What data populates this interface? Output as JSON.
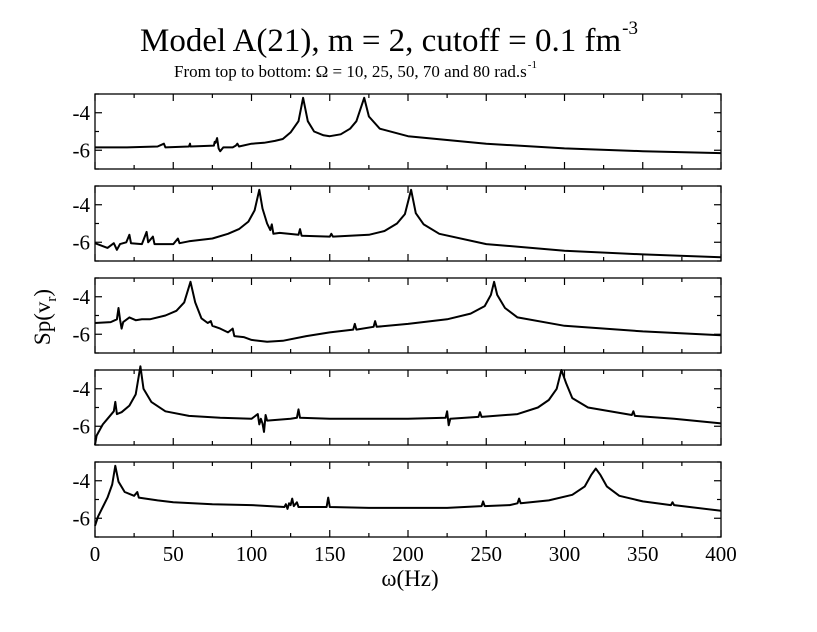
{
  "chart_data": {
    "type": "line",
    "title": "Model A(21), m = 2, cutoff = 0.1 fm",
    "title_sup": "-3",
    "subtitle": "From top to bottom: Ω = 10, 25, 50, 70 and 80 rad.s",
    "subtitle_sup": "-1",
    "xlabel": "ω(Hz)",
    "ylabel_main": "Sp(v",
    "ylabel_sub": "r",
    "ylabel_close": ")",
    "xlim": [
      0,
      400
    ],
    "ylim": [
      -7,
      -3
    ],
    "x_ticks": [
      0,
      50,
      100,
      150,
      200,
      250,
      300,
      350,
      400
    ],
    "y_ticks": [
      -4,
      -6
    ],
    "panels": [
      {
        "name": "Ω = 10 rad.s-1",
        "peaks": [
          [
            133,
            -3.2
          ],
          [
            172,
            -3.2
          ]
        ],
        "points": [
          [
            0,
            -5.85
          ],
          [
            20,
            -5.85
          ],
          [
            40,
            -5.8
          ],
          [
            44,
            -5.65
          ],
          [
            45,
            -5.85
          ],
          [
            60,
            -5.8
          ],
          [
            60.7,
            -5.65
          ],
          [
            61,
            -5.8
          ],
          [
            76,
            -5.75
          ],
          [
            76.5,
            -5.55
          ],
          [
            77,
            -5.6
          ],
          [
            78,
            -5.35
          ],
          [
            79,
            -5.9
          ],
          [
            80,
            -6.05
          ],
          [
            82,
            -5.85
          ],
          [
            88,
            -5.85
          ],
          [
            90,
            -5.75
          ],
          [
            91,
            -5.65
          ],
          [
            92,
            -5.8
          ],
          [
            100,
            -5.65
          ],
          [
            108,
            -5.6
          ],
          [
            115,
            -5.5
          ],
          [
            120,
            -5.4
          ],
          [
            125,
            -5.05
          ],
          [
            130,
            -4.45
          ],
          [
            133,
            -3.2
          ],
          [
            136,
            -4.45
          ],
          [
            140,
            -5.0
          ],
          [
            146,
            -5.2
          ],
          [
            150,
            -5.25
          ],
          [
            157,
            -5.15
          ],
          [
            163,
            -4.85
          ],
          [
            167,
            -4.45
          ],
          [
            172,
            -3.2
          ],
          [
            175,
            -4.2
          ],
          [
            182,
            -4.85
          ],
          [
            200,
            -5.25
          ],
          [
            250,
            -5.65
          ],
          [
            300,
            -5.9
          ],
          [
            350,
            -6.05
          ],
          [
            400,
            -6.15
          ]
        ]
      },
      {
        "name": "Ω = 25 rad.s-1",
        "peaks": [
          [
            105,
            -3.2
          ],
          [
            202,
            -3.2
          ]
        ],
        "points": [
          [
            0,
            -6.05
          ],
          [
            8,
            -6.3
          ],
          [
            12,
            -6.05
          ],
          [
            14,
            -6.4
          ],
          [
            16,
            -6.1
          ],
          [
            20,
            -6.0
          ],
          [
            22,
            -5.6
          ],
          [
            23,
            -6.05
          ],
          [
            30,
            -6.1
          ],
          [
            33,
            -5.45
          ],
          [
            34,
            -6.0
          ],
          [
            37,
            -5.7
          ],
          [
            38,
            -6.1
          ],
          [
            50,
            -6.1
          ],
          [
            53,
            -5.8
          ],
          [
            54,
            -6.05
          ],
          [
            60,
            -5.95
          ],
          [
            75,
            -5.8
          ],
          [
            85,
            -5.55
          ],
          [
            92,
            -5.3
          ],
          [
            98,
            -4.9
          ],
          [
            102,
            -4.3
          ],
          [
            105,
            -3.2
          ],
          [
            107,
            -4.2
          ],
          [
            110,
            -5.0
          ],
          [
            112,
            -5.35
          ],
          [
            113,
            -5.05
          ],
          [
            114,
            -5.55
          ],
          [
            118,
            -5.5
          ],
          [
            130,
            -5.6
          ],
          [
            131,
            -5.3
          ],
          [
            132,
            -5.65
          ],
          [
            150,
            -5.7
          ],
          [
            151,
            -5.55
          ],
          [
            152,
            -5.7
          ],
          [
            175,
            -5.6
          ],
          [
            185,
            -5.4
          ],
          [
            193,
            -5.0
          ],
          [
            198,
            -4.5
          ],
          [
            202,
            -3.2
          ],
          [
            205,
            -4.45
          ],
          [
            210,
            -5.05
          ],
          [
            220,
            -5.55
          ],
          [
            250,
            -6.1
          ],
          [
            300,
            -6.45
          ],
          [
            350,
            -6.65
          ],
          [
            400,
            -6.8
          ]
        ]
      },
      {
        "name": "Ω = 50 rad.s-1",
        "peaks": [
          [
            61,
            -3.2
          ],
          [
            255,
            -3.2
          ]
        ],
        "points": [
          [
            0,
            -5.4
          ],
          [
            10,
            -5.35
          ],
          [
            14,
            -5.2
          ],
          [
            15,
            -4.6
          ],
          [
            16,
            -5.2
          ],
          [
            17,
            -5.7
          ],
          [
            18,
            -5.35
          ],
          [
            22,
            -5.1
          ],
          [
            26,
            -5.25
          ],
          [
            30,
            -5.2
          ],
          [
            35,
            -5.2
          ],
          [
            45,
            -5.0
          ],
          [
            52,
            -4.75
          ],
          [
            57,
            -4.3
          ],
          [
            61,
            -3.2
          ],
          [
            64,
            -4.3
          ],
          [
            68,
            -5.15
          ],
          [
            72,
            -5.4
          ],
          [
            74,
            -5.3
          ],
          [
            75,
            -5.55
          ],
          [
            80,
            -5.7
          ],
          [
            85,
            -5.9
          ],
          [
            88,
            -5.7
          ],
          [
            89,
            -6.1
          ],
          [
            95,
            -6.15
          ],
          [
            100,
            -6.3
          ],
          [
            110,
            -6.4
          ],
          [
            120,
            -6.35
          ],
          [
            135,
            -6.1
          ],
          [
            150,
            -5.9
          ],
          [
            165,
            -5.75
          ],
          [
            166,
            -5.45
          ],
          [
            167,
            -5.75
          ],
          [
            178,
            -5.6
          ],
          [
            179,
            -5.3
          ],
          [
            180,
            -5.6
          ],
          [
            200,
            -5.45
          ],
          [
            225,
            -5.2
          ],
          [
            240,
            -4.9
          ],
          [
            249,
            -4.5
          ],
          [
            253,
            -3.9
          ],
          [
            255,
            -3.2
          ],
          [
            257,
            -3.9
          ],
          [
            262,
            -4.6
          ],
          [
            270,
            -5.1
          ],
          [
            300,
            -5.55
          ],
          [
            350,
            -5.85
          ],
          [
            400,
            -6.05
          ]
        ]
      },
      {
        "name": "Ω = 70 rad.s-1",
        "peaks": [
          [
            29,
            -2.8
          ],
          [
            298,
            -3.0
          ]
        ],
        "points": [
          [
            0,
            -7.0
          ],
          [
            1,
            -6.5
          ],
          [
            3,
            -6.2
          ],
          [
            5,
            -5.9
          ],
          [
            8,
            -5.6
          ],
          [
            12,
            -5.2
          ],
          [
            13,
            -4.7
          ],
          [
            14,
            -5.35
          ],
          [
            17,
            -5.25
          ],
          [
            22,
            -4.9
          ],
          [
            26,
            -4.3
          ],
          [
            29,
            -2.8
          ],
          [
            31,
            -4.0
          ],
          [
            36,
            -4.7
          ],
          [
            45,
            -5.2
          ],
          [
            60,
            -5.45
          ],
          [
            80,
            -5.55
          ],
          [
            100,
            -5.6
          ],
          [
            104,
            -5.35
          ],
          [
            105,
            -5.9
          ],
          [
            106,
            -5.6
          ],
          [
            107,
            -5.85
          ],
          [
            108,
            -6.3
          ],
          [
            109,
            -5.4
          ],
          [
            110,
            -5.7
          ],
          [
            125,
            -5.6
          ],
          [
            129,
            -5.55
          ],
          [
            130,
            -5.1
          ],
          [
            131,
            -5.55
          ],
          [
            150,
            -5.6
          ],
          [
            175,
            -5.6
          ],
          [
            200,
            -5.6
          ],
          [
            224,
            -5.55
          ],
          [
            225,
            -5.2
          ],
          [
            226,
            -5.95
          ],
          [
            227,
            -5.6
          ],
          [
            245,
            -5.5
          ],
          [
            246,
            -5.25
          ],
          [
            247,
            -5.5
          ],
          [
            270,
            -5.35
          ],
          [
            283,
            -5.0
          ],
          [
            290,
            -4.6
          ],
          [
            295,
            -4.0
          ],
          [
            298,
            -3.0
          ],
          [
            301,
            -3.7
          ],
          [
            305,
            -4.5
          ],
          [
            315,
            -5.0
          ],
          [
            343,
            -5.4
          ],
          [
            344,
            -5.2
          ],
          [
            345,
            -5.45
          ],
          [
            370,
            -5.6
          ],
          [
            400,
            -5.85
          ]
        ]
      },
      {
        "name": "Ω = 80 rad.s-1",
        "peaks": [
          [
            13,
            -3.2
          ],
          [
            320,
            -3.35
          ]
        ],
        "points": [
          [
            0,
            -6.4
          ],
          [
            2,
            -5.9
          ],
          [
            5,
            -5.4
          ],
          [
            8,
            -4.9
          ],
          [
            11,
            -4.2
          ],
          [
            13,
            -3.2
          ],
          [
            15,
            -4.05
          ],
          [
            19,
            -4.6
          ],
          [
            25,
            -4.8
          ],
          [
            27,
            -4.6
          ],
          [
            28,
            -4.9
          ],
          [
            40,
            -5.05
          ],
          [
            50,
            -5.15
          ],
          [
            75,
            -5.25
          ],
          [
            100,
            -5.3
          ],
          [
            121,
            -5.4
          ],
          [
            122,
            -5.25
          ],
          [
            123,
            -5.5
          ],
          [
            124,
            -5.2
          ],
          [
            125,
            -5.3
          ],
          [
            126,
            -4.95
          ],
          [
            127,
            -5.35
          ],
          [
            129,
            -5.15
          ],
          [
            130,
            -5.4
          ],
          [
            148,
            -5.4
          ],
          [
            149,
            -4.9
          ],
          [
            150,
            -5.4
          ],
          [
            175,
            -5.45
          ],
          [
            200,
            -5.45
          ],
          [
            225,
            -5.45
          ],
          [
            247,
            -5.35
          ],
          [
            248,
            -5.1
          ],
          [
            249,
            -5.35
          ],
          [
            265,
            -5.3
          ],
          [
            270,
            -5.2
          ],
          [
            271,
            -4.95
          ],
          [
            272,
            -5.2
          ],
          [
            290,
            -5.05
          ],
          [
            305,
            -4.75
          ],
          [
            313,
            -4.3
          ],
          [
            317,
            -3.7
          ],
          [
            320,
            -3.35
          ],
          [
            323,
            -3.7
          ],
          [
            327,
            -4.3
          ],
          [
            335,
            -4.8
          ],
          [
            350,
            -5.1
          ],
          [
            368,
            -5.3
          ],
          [
            369,
            -5.15
          ],
          [
            370,
            -5.3
          ],
          [
            400,
            -5.6
          ]
        ]
      }
    ]
  }
}
